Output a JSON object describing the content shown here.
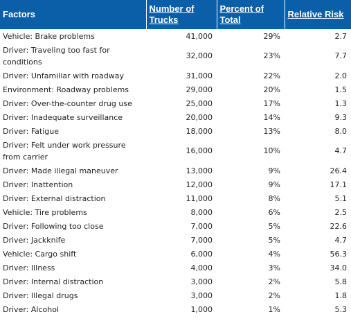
{
  "table": {
    "headers": [
      "Factors",
      "Number of Trucks",
      "Percent of Total",
      "Relative Risk"
    ],
    "rows": [
      [
        "Vehicle: Brake problems",
        "41,000",
        "29%",
        "2.7"
      ],
      [
        "Driver: Traveling too fast for conditions",
        "32,000",
        "23%",
        "7.7"
      ],
      [
        "Driver: Unfamiliar with roadway",
        "31,000",
        "22%",
        "2.0"
      ],
      [
        "Environment: Roadway problems",
        "29,000",
        "20%",
        "1.5"
      ],
      [
        "Driver: Over-the-counter drug use",
        "25,000",
        "17%",
        "1.3"
      ],
      [
        "Driver: Inadequate surveillance",
        "20,000",
        "14%",
        "9.3"
      ],
      [
        "Driver: Fatigue",
        "18,000",
        "13%",
        "8.0"
      ],
      [
        "Driver: Felt under work pressure from carrier",
        "16,000",
        "10%",
        "4.7"
      ],
      [
        "Driver: Made illegal maneuver",
        "13,000",
        "9%",
        "26.4"
      ],
      [
        "Driver: Inattention",
        "12,000",
        "9%",
        "17.1"
      ],
      [
        "Driver: External distraction",
        "11,000",
        "8%",
        "5.1"
      ],
      [
        "Vehicle: Tire problems",
        "8,000",
        "6%",
        "2.5"
      ],
      [
        "Driver: Following too close",
        "7,000",
        "5%",
        "22.6"
      ],
      [
        "Driver: Jackknife",
        "7,000",
        "5%",
        "4.7"
      ],
      [
        "Vehicle: Cargo shift",
        "6,000",
        "4%",
        "56.3"
      ],
      [
        "Driver: Illness",
        "4,000",
        "3%",
        "34.0"
      ],
      [
        "Driver: Internal distraction",
        "3,000",
        "2%",
        "5.8"
      ],
      [
        "Driver: Illegal drugs",
        "3,000",
        "2%",
        "1.8"
      ],
      [
        "Driver: Alcohol",
        "1,000",
        "1%",
        "5.3"
      ]
    ],
    "colors": {
      "header_bg": "#0b5ea8",
      "header_text": "#ffffff",
      "body_text": "#222222"
    }
  }
}
